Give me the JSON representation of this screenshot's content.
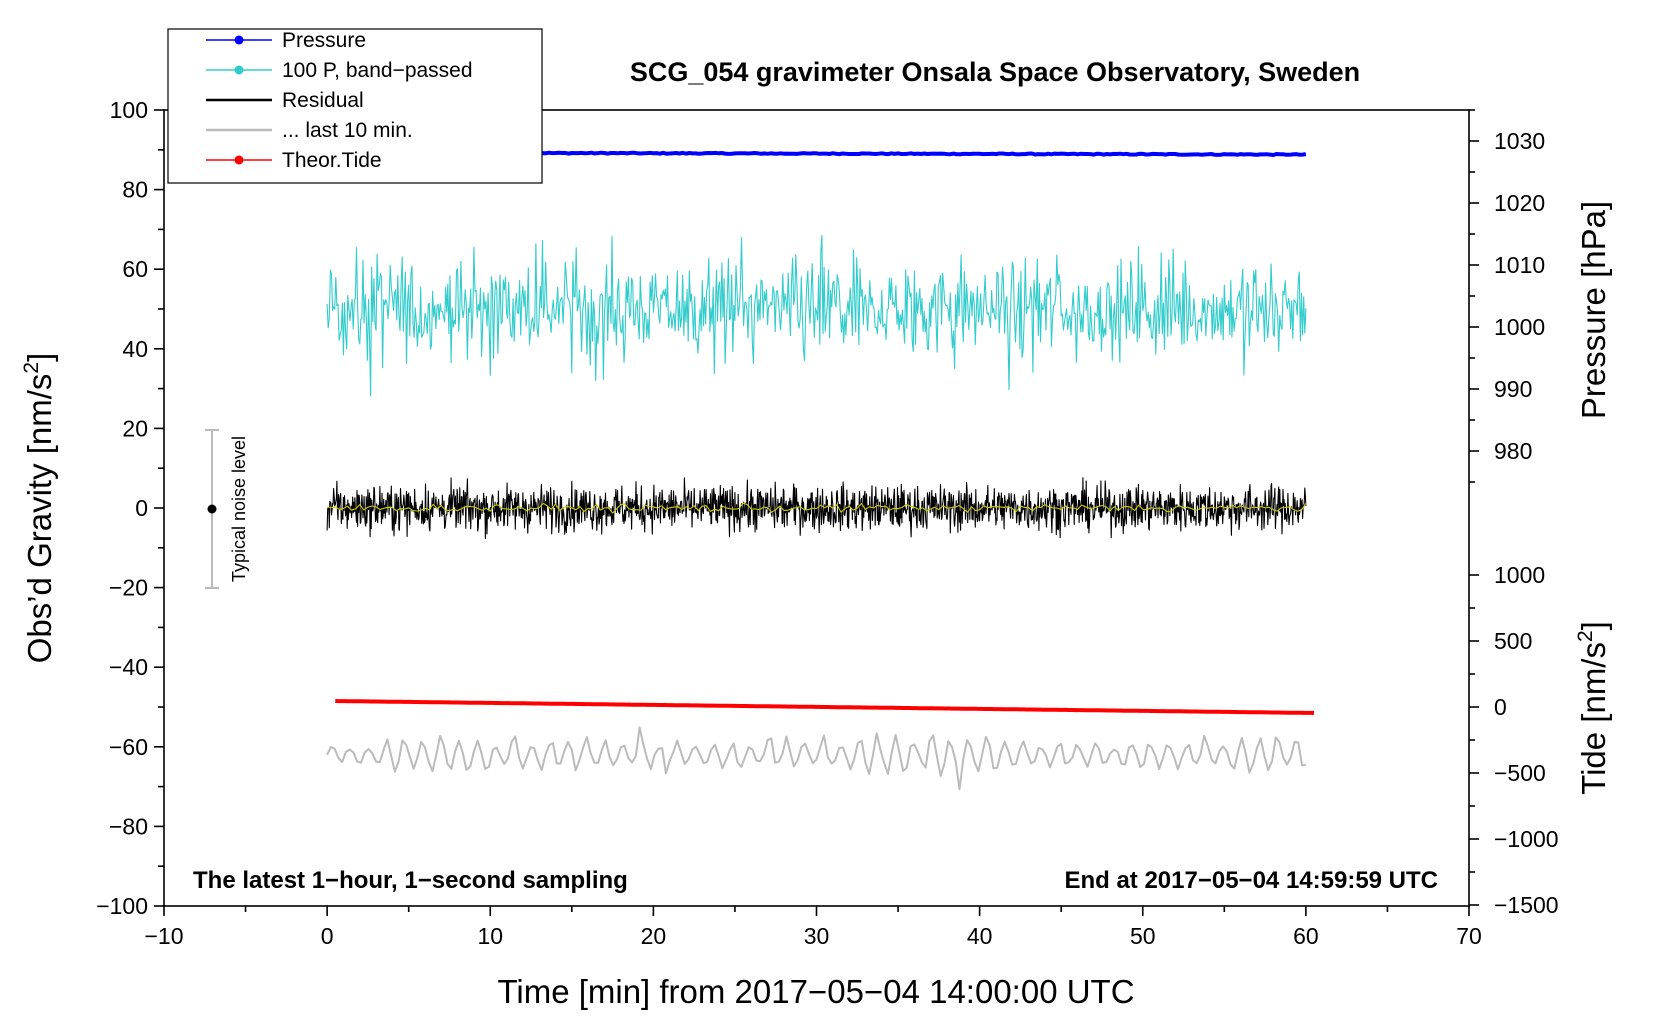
{
  "chart_data": {
    "type": "line",
    "title": "SCG_054 gravimeter Onsala Space Observatory, Sweden",
    "xlabel": "Time [min] from 2017−05−04 14:00:00 UTC",
    "ylabel_left": "Obs’d Gravity [nm/s",
    "ylabel_left_sup": "2",
    "ylabel_left_close": "]",
    "ylabel_right_pressure": "Pressure [hPa]",
    "ylabel_right_tide": "Tide [nm/s",
    "ylabel_right_tide_sup": "2",
    "ylabel_right_tide_close": "]",
    "xlim": [
      -10,
      70
    ],
    "ylim_left": [
      -100,
      100
    ],
    "xticks": [
      "−10",
      "0",
      "10",
      "20",
      "30",
      "40",
      "50",
      "60",
      "70"
    ],
    "yticks_left": [
      "100",
      "80",
      "60",
      "40",
      "20",
      "0",
      "−20",
      "−40",
      "−60",
      "−80",
      "−100"
    ],
    "pressure_ticks": [
      "1030",
      "1020",
      "1010",
      "1000",
      "990",
      "980"
    ],
    "tide_ticks": [
      "1000",
      "500",
      "0",
      "−500",
      "−1000",
      "−1500"
    ],
    "annotation_left": "The latest 1−hour, 1−second sampling",
    "annotation_right": "End at 2017−05−04 14:59:59 UTC",
    "noise_label": "Typical noise level",
    "noise_bar": {
      "x": -7,
      "center": 0,
      "low": -20,
      "high": 20
    },
    "legend": [
      {
        "label": "Pressure",
        "color": "#0000ff",
        "marker": true
      },
      {
        "label": "100 P, band−passed",
        "color": "#33cccc",
        "marker": true
      },
      {
        "label": "Residual",
        "color": "#000000",
        "marker": false
      },
      {
        "label": "... last 10 min.",
        "color": "#bbbbbb",
        "marker": false
      },
      {
        "label": "Theor.Tide",
        "color": "#ff0000",
        "marker": true
      }
    ],
    "series": [
      {
        "name": "Pressure",
        "color": "#0000ff",
        "x_range": [
          0,
          60
        ],
        "y_start": 89.3,
        "y_end": 88.8,
        "noise": 0.25
      },
      {
        "name": "100 P, band-passed",
        "color": "#33cccc",
        "x_range": [
          0,
          60
        ],
        "center": 50,
        "noise": 8,
        "min": 28,
        "max": 72
      },
      {
        "name": "Residual",
        "color": "#000000",
        "x_range": [
          0,
          60
        ],
        "center": 0,
        "noise": 4,
        "min": -10,
        "max": 11
      },
      {
        "name": "Residual smoothed",
        "color": "#cccc00",
        "x_range": [
          0,
          60
        ],
        "center": 0,
        "noise": 0.7
      },
      {
        "name": "Theor.Tide",
        "color": "#ff0000",
        "x_range": [
          0.5,
          60.5
        ],
        "y_start": -48.5,
        "y_end": -51.5
      },
      {
        "name": "... last 10 min.",
        "color": "#bbbbbb",
        "x_range": [
          0,
          60
        ],
        "center": -62,
        "noise": 3,
        "min": -71,
        "max": -53
      }
    ]
  }
}
